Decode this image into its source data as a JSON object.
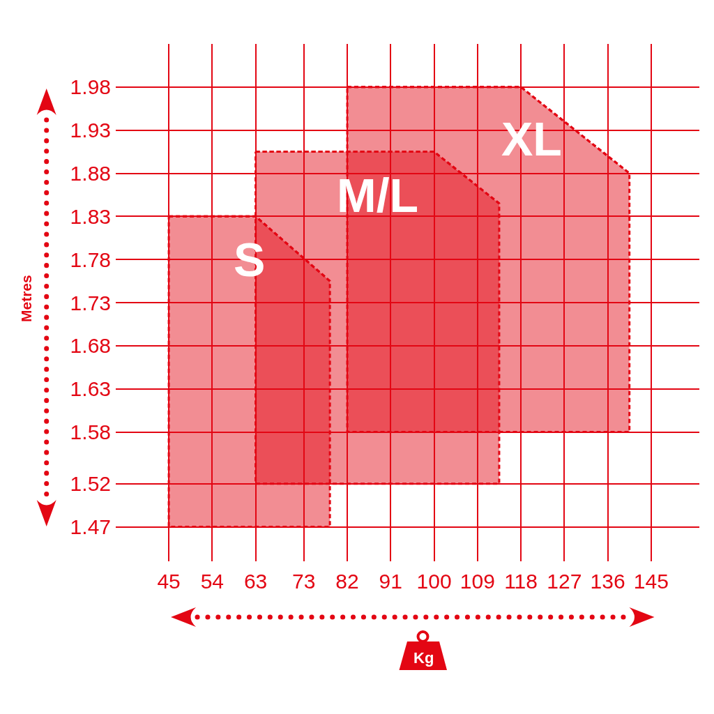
{
  "chart_data": {
    "type": "line",
    "xlabel": "Kg",
    "ylabel": "Metres",
    "xlim": [
      34,
      155
    ],
    "xticks": [
      45,
      54,
      63,
      73,
      82,
      91,
      100,
      109,
      118,
      127,
      136,
      145
    ],
    "ylim": [
      1.43,
      2.03
    ],
    "yticks": [
      1.47,
      1.52,
      1.58,
      1.63,
      1.68,
      1.73,
      1.78,
      1.83,
      1.88,
      1.93,
      1.98
    ],
    "grid": true,
    "line_style": "dashed",
    "series": [
      {
        "name": "S",
        "color": "#e30613",
        "x": [
          45,
          63,
          78.4
        ],
        "values": [
          1.83,
          1.83,
          1.755
        ],
        "upper": [
          1.83,
          1.83,
          1.755
        ],
        "lower": [
          1.47,
          1.47,
          1.47
        ]
      },
      {
        "name": "M/L",
        "color": "#e30613",
        "x": [
          63,
          100,
          113.5
        ],
        "values": [
          1.905,
          1.905,
          1.845
        ],
        "upper": [
          1.905,
          1.905,
          1.845
        ],
        "lower": [
          1.52,
          1.52,
          1.52
        ]
      },
      {
        "name": "XL",
        "color": "#e30613",
        "x": [
          82,
          118,
          140.5
        ],
        "values": [
          1.98,
          1.98,
          1.88
        ],
        "upper": [
          1.98,
          1.98,
          1.88
        ],
        "lower": [
          1.58,
          1.58,
          1.58
        ]
      }
    ]
  }
}
